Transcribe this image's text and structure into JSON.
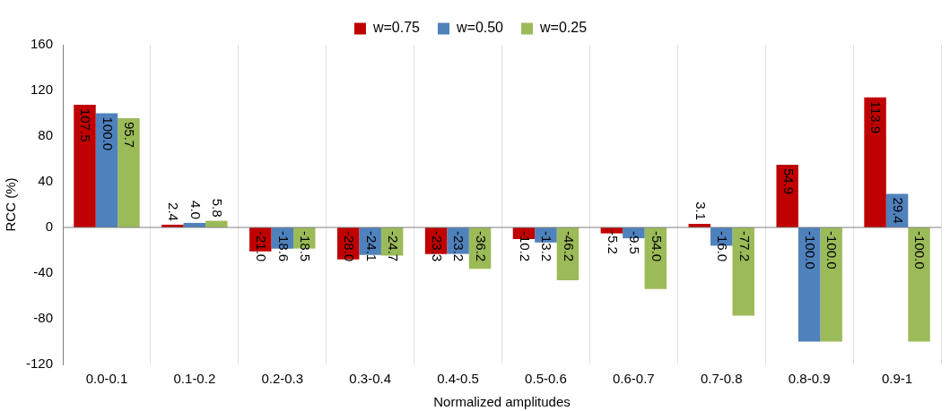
{
  "chart_data": {
    "type": "bar",
    "xlabel": "Normalized amplitudes",
    "ylabel": "RCC (%)",
    "categories": [
      "0.0-0.1",
      "0.1-0.2",
      "0.2-0.3",
      "0.3-0.4",
      "0.4-0.5",
      "0.5-0.6",
      "0.6-0.7",
      "0.7-0.8",
      "0.8-0.9",
      "0.9-1"
    ],
    "series": [
      {
        "name": "w=0.75",
        "color": "#c00000",
        "values": [
          107.5,
          2.4,
          -21.0,
          -28.0,
          -23.3,
          -10.2,
          -5.2,
          3.1,
          54.9,
          113.9
        ],
        "value_labels": [
          "107.5",
          "2.4",
          "-21.0",
          "-28.0",
          "-23.3",
          "-10.2",
          "-5.2",
          "3.1",
          "54.9",
          "113.9"
        ]
      },
      {
        "name": "w=0.50",
        "color": "#4f81bd",
        "values": [
          100.0,
          4.0,
          -18.6,
          -24.1,
          -23.2,
          -13.2,
          -9.5,
          -16.0,
          -100.0,
          29.4
        ],
        "value_labels": [
          "100.0",
          "4.0",
          "-18.6",
          "-24.1",
          "-23.2",
          "-13.2",
          "-9.5",
          "-16.0",
          "-100.0",
          "29.4"
        ]
      },
      {
        "name": "w=0.25",
        "color": "#9bbb59",
        "values": [
          95.7,
          5.8,
          -18.5,
          -24.7,
          -36.2,
          -46.2,
          -54.0,
          -77.2,
          -100.0,
          -100.0
        ],
        "value_labels": [
          "95.7",
          "5.8",
          "-18.5",
          "-24.7",
          "-36.2",
          "-46.2",
          "-54.0",
          "-77.2",
          "-100.0",
          "-100.0"
        ]
      }
    ],
    "ylim": [
      -120,
      160
    ],
    "yticks": [
      -120,
      -80,
      -40,
      0,
      40,
      80,
      120,
      160
    ],
    "grid": "x",
    "legend": "top"
  }
}
